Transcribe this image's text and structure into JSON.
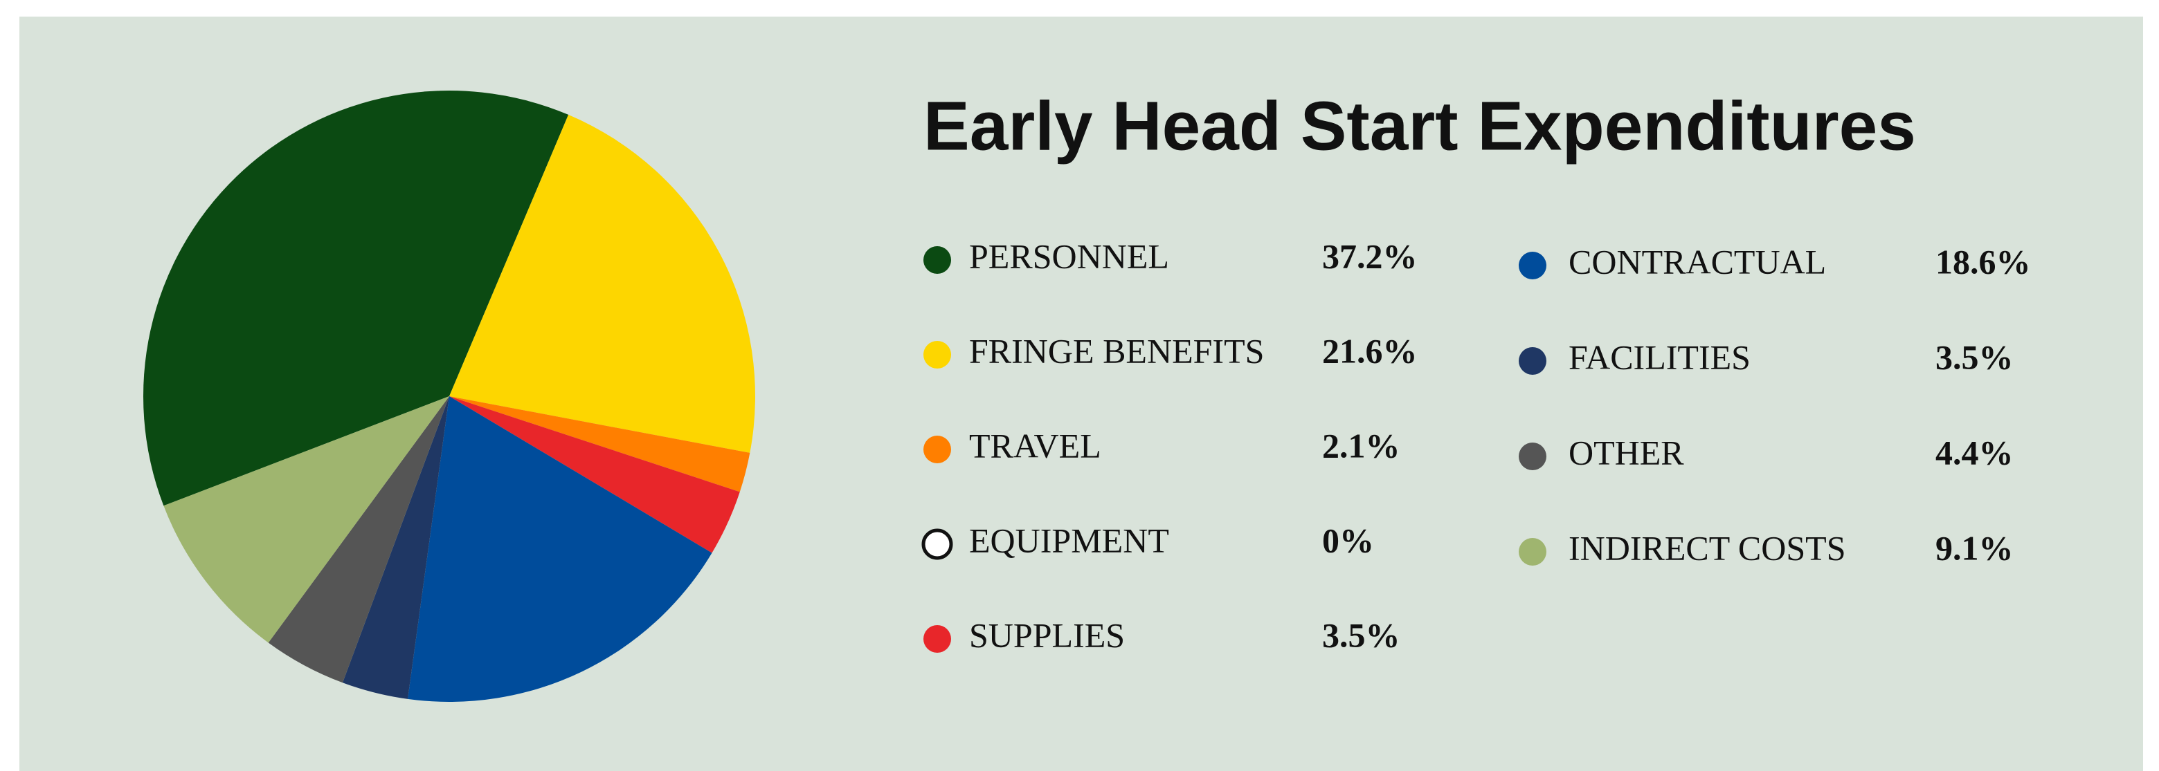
{
  "chart_data": {
    "type": "pie",
    "title": "Early Head Start Expenditures",
    "categories": [
      "PERSONNEL",
      "FRINGE BENEFITS",
      "TRAVEL",
      "EQUIPMENT",
      "SUPPLIES",
      "CONTRACTUAL",
      "FACILITIES",
      "OTHER",
      "INDIRECT COSTS"
    ],
    "values": [
      37.2,
      21.6,
      2.1,
      0,
      3.5,
      18.6,
      3.5,
      4.4,
      9.1
    ],
    "value_labels": [
      "37.2%",
      "21.6%",
      "2.1%",
      "0%",
      "3.5%",
      "18.6%",
      "3.5%",
      "4.4%",
      "9.1%"
    ],
    "colors": [
      "#0b4a12",
      "#fdd600",
      "#ff7f00",
      "#ffffff",
      "#e8262a",
      "#004c9b",
      "#1f3764",
      "#555555",
      "#9fb56f"
    ]
  }
}
